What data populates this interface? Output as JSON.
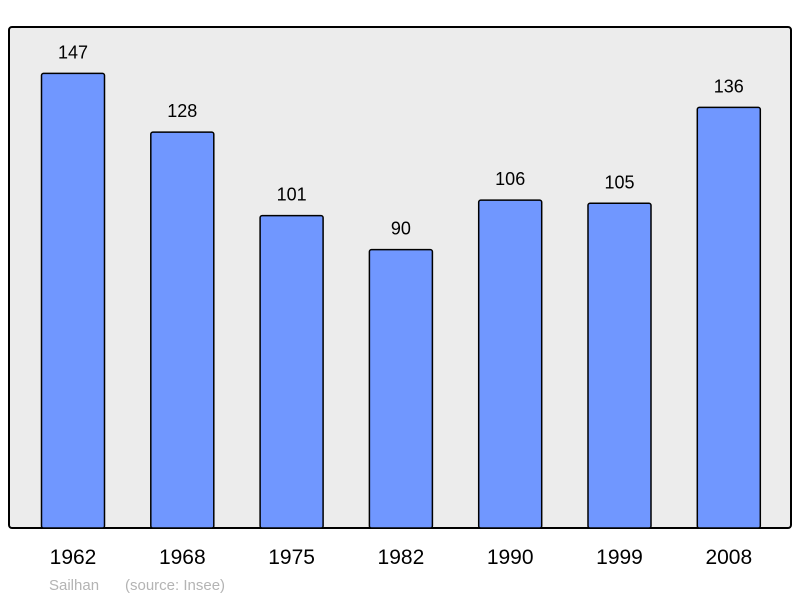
{
  "chart_data": {
    "type": "bar",
    "categories": [
      "1962",
      "1968",
      "1975",
      "1982",
      "1990",
      "1999",
      "2008"
    ],
    "values": [
      147,
      128,
      101,
      90,
      106,
      105,
      136
    ],
    "title": "",
    "xlabel": "",
    "ylabel": "",
    "ylim": [
      0,
      162
    ],
    "grid": false,
    "data_labels": true,
    "colors": {
      "bar": "#7097ff",
      "plot_background": "#ececec",
      "border": "#000000",
      "footer_text": "#b4b4b4"
    }
  },
  "footer": {
    "place": "Sailhan",
    "source": "(source: Insee)"
  }
}
